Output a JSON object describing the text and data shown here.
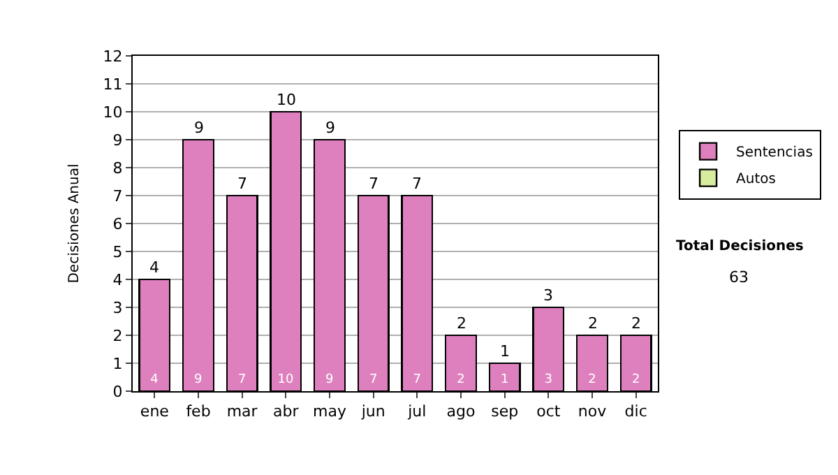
{
  "chart_data": {
    "type": "bar",
    "ylabel": "Decisiones Anual",
    "categories": [
      "ene",
      "feb",
      "mar",
      "abr",
      "may",
      "jun",
      "jul",
      "ago",
      "sep",
      "oct",
      "nov",
      "dic"
    ],
    "series": [
      {
        "name": "Sentencias",
        "color": "#df80be",
        "values": [
          4,
          9,
          7,
          10,
          9,
          7,
          7,
          2,
          1,
          3,
          2,
          2
        ]
      },
      {
        "name": "Autos",
        "color": "#d8eca0",
        "values": [
          null,
          null,
          null,
          null,
          null,
          null,
          null,
          null,
          null,
          null,
          null,
          null
        ]
      }
    ],
    "stacked": true,
    "data_labels": true,
    "totals": [
      "4",
      "9",
      "7",
      "10",
      "9",
      "7",
      "7",
      "2",
      "1",
      "3",
      "2",
      "2"
    ],
    "ylim": [
      0,
      12
    ],
    "yticks": [
      0,
      1,
      2,
      3,
      4,
      5,
      6,
      7,
      8,
      9,
      10,
      11,
      12
    ],
    "grid": "y",
    "legend": "right",
    "annotations": [
      "Total Decisiones",
      "63"
    ]
  }
}
